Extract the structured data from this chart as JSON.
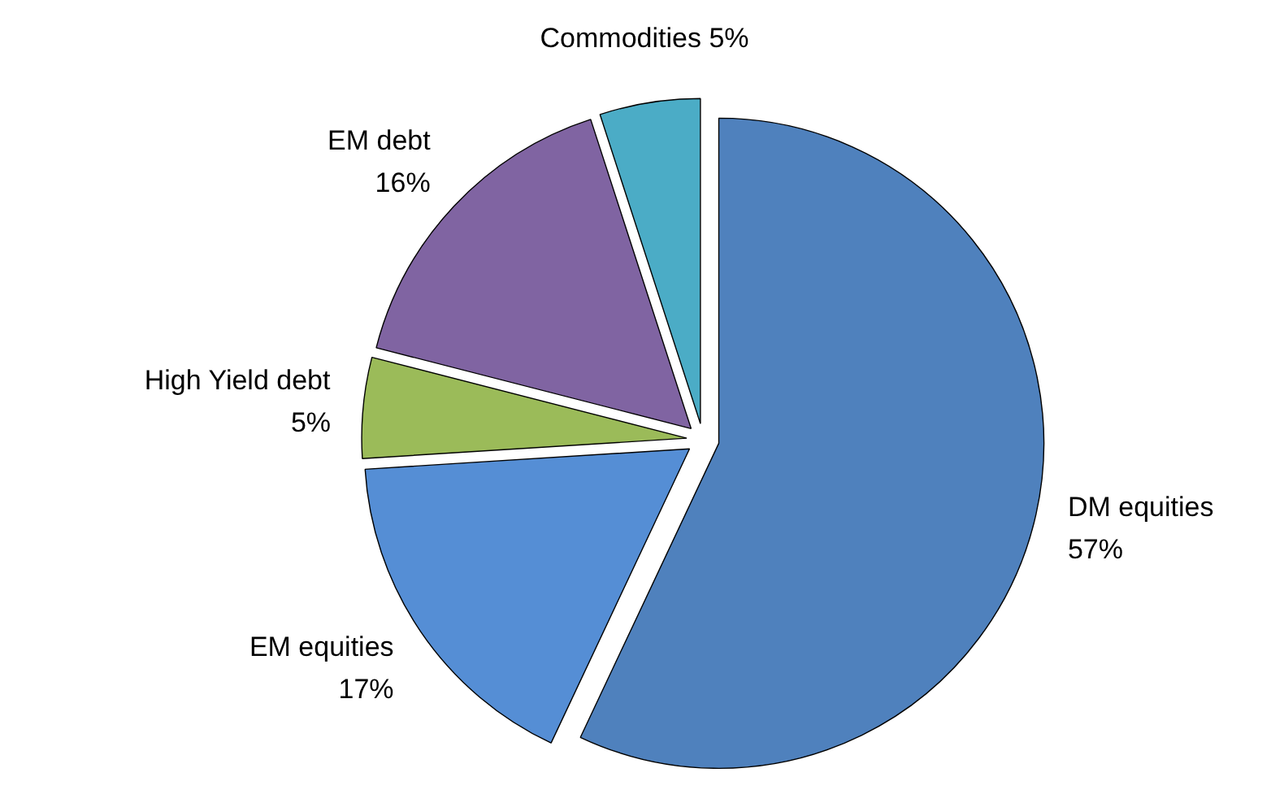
{
  "chart_data": {
    "type": "pie",
    "categories": [
      "DM equities",
      "EM equities",
      "High Yield debt",
      "EM debt",
      "Commodities"
    ],
    "values": [
      57,
      17,
      5,
      16,
      5
    ],
    "colors": [
      "#4f81bd",
      "#558ed5",
      "#9bbb59",
      "#8064a2",
      "#4bacc6"
    ],
    "value_labels": [
      "57%",
      "17%",
      "5%",
      "16%",
      "5%"
    ]
  }
}
